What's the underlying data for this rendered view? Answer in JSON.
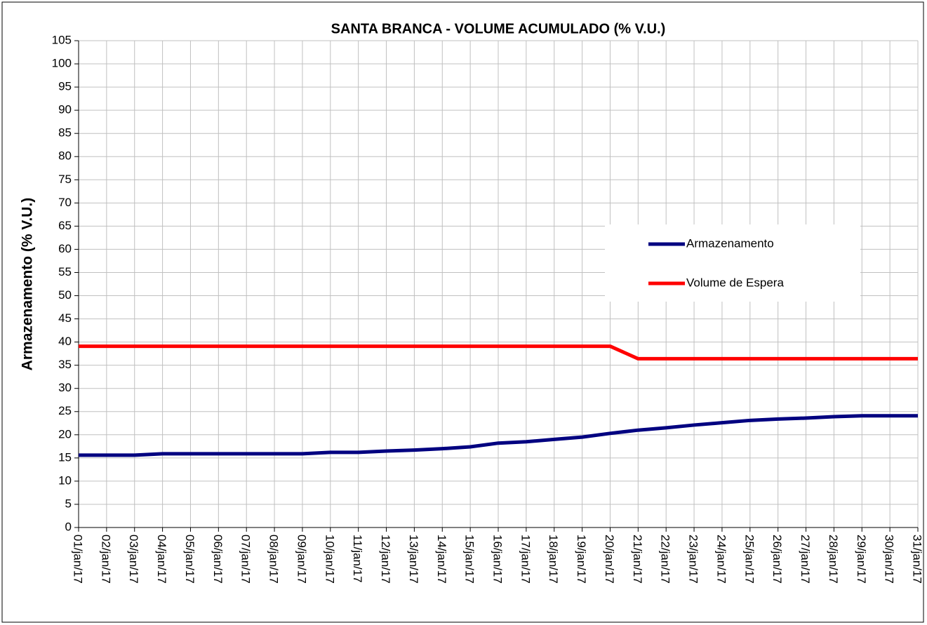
{
  "chart_data": {
    "type": "line",
    "title": "SANTA BRANCA - VOLUME ACUMULADO (% V.U.)",
    "y_label": "Armazenamento (% V.U.)",
    "categories": [
      "01/jan/17",
      "02/jan/17",
      "03/jan/17",
      "04/jan/17",
      "05/jan/17",
      "06/jan/17",
      "07/jan/17",
      "08/jan/17",
      "09/jan/17",
      "10/jan/17",
      "11/jan/17",
      "12/jan/17",
      "13/jan/17",
      "14/jan/17",
      "15/jan/17",
      "16/jan/17",
      "17/jan/17",
      "18/jan/17",
      "19/jan/17",
      "20/jan/17",
      "21/jan/17",
      "22/jan/17",
      "23/jan/17",
      "24/jan/17",
      "25/jan/17",
      "26/jan/17",
      "27/jan/17",
      "28/jan/17",
      "29/jan/17",
      "30/jan/17",
      "31/jan/17"
    ],
    "series": [
      {
        "name": "Armazenamento",
        "color": "#000080",
        "values": [
          15.6,
          15.6,
          15.6,
          15.9,
          15.9,
          15.9,
          15.9,
          15.9,
          15.9,
          16.2,
          16.2,
          16.5,
          16.7,
          17.0,
          17.4,
          18.2,
          18.5,
          19.0,
          19.5,
          20.3,
          21.0,
          21.5,
          22.1,
          22.6,
          23.1,
          23.4,
          23.6,
          23.9,
          24.1,
          24.1,
          24.1
        ]
      },
      {
        "name": "Volume de Espera",
        "color": "#ff0000",
        "values": [
          39.1,
          39.1,
          39.1,
          39.1,
          39.1,
          39.1,
          39.1,
          39.1,
          39.1,
          39.1,
          39.1,
          39.1,
          39.1,
          39.1,
          39.1,
          39.1,
          39.1,
          39.1,
          39.1,
          39.1,
          36.4,
          36.4,
          36.4,
          36.4,
          36.4,
          36.4,
          36.4,
          36.4,
          36.4,
          36.4,
          36.4
        ]
      }
    ],
    "ylim": [
      0,
      105
    ],
    "yticks": [
      0,
      5,
      10,
      15,
      20,
      25,
      30,
      35,
      40,
      45,
      50,
      55,
      60,
      65,
      70,
      75,
      80,
      85,
      90,
      95,
      100,
      105
    ],
    "grid": true,
    "legend": "right"
  }
}
